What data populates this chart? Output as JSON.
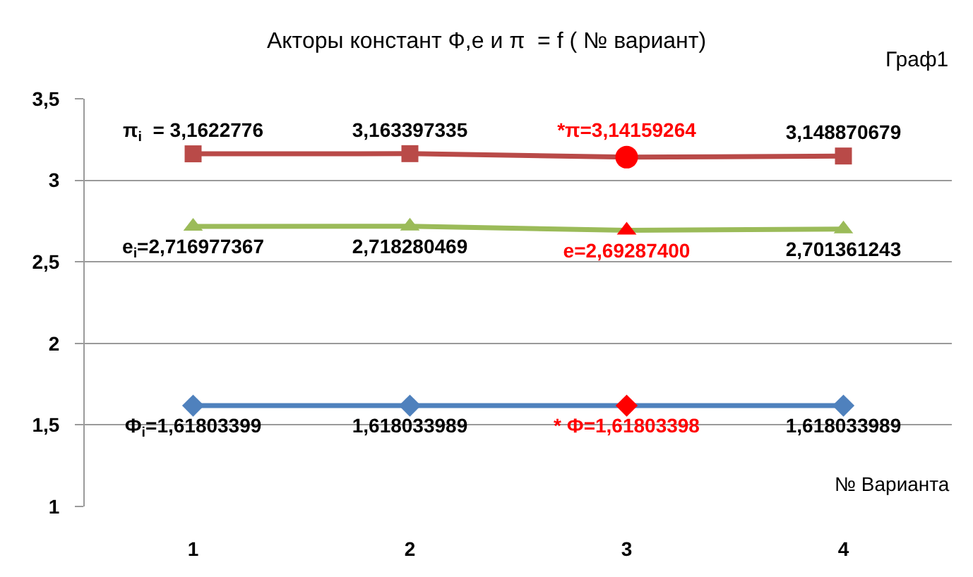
{
  "chart_data": {
    "type": "line",
    "title": "Акторы констант Ф,е и π  = f ( № вариант)",
    "xlabel": "№ Варианта",
    "annotations": [
      "Граф1"
    ],
    "categories": [
      "1",
      "2",
      "3",
      "4"
    ],
    "series": [
      {
        "color": "#b94a48",
        "colors": [
          "#b94a48",
          "#b94a48",
          "#ff0000",
          "#b94a48"
        ],
        "marker": [
          "square",
          "square",
          "circle",
          "square"
        ],
        "values": [
          3.1622776,
          3.163397335,
          3.14159264,
          3.148870679
        ],
        "value_labels": [
          "π$_{i}$  = 3,1622776",
          "3,163397335",
          "*π=3,14159264",
          "3,148870679"
        ]
      },
      {
        "color": "#9bbb59",
        "colors": [
          "#9bbb59",
          "#9bbb59",
          "#ff0000",
          "#9bbb59"
        ],
        "marker": "triangle",
        "values": [
          2.716977367,
          2.718280469,
          2.692874,
          2.701361243
        ],
        "value_labels": [
          "e$_{i}$=2,716977367",
          "2,718280469",
          "e=2,69287400",
          "2,701361243"
        ]
      },
      {
        "color": "#4f81bd",
        "colors": [
          "#4f81bd",
          "#4f81bd",
          "#ff0000",
          "#4f81bd"
        ],
        "marker": "diamond",
        "values": [
          1.61803399,
          1.618033989,
          1.61803398,
          1.618033989
        ],
        "value_labels": [
          "Ф$_{i}$=1,61803399",
          "1,618033989",
          "* Ф=1,61803398",
          "1,618033989"
        ]
      }
    ],
    "ylim": [
      1,
      3.5
    ],
    "yticks": [
      {
        "value": 1,
        "label": "1"
      },
      {
        "value": 1.5,
        "label": "1,5"
      },
      {
        "value": 2,
        "label": "2"
      },
      {
        "value": 2.5,
        "label": "2,5"
      },
      {
        "value": 3,
        "label": "3"
      },
      {
        "value": 3.5,
        "label": "3,5"
      }
    ],
    "grid": "y"
  }
}
